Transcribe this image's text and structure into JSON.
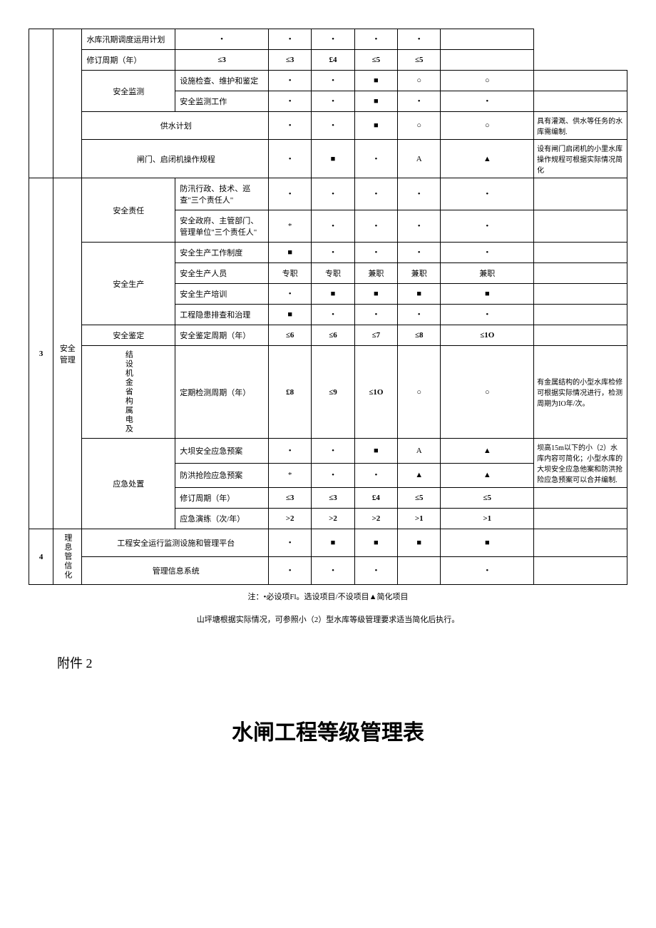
{
  "rows": [
    {
      "item": "水库汛期调度运用计划",
      "c": [
        "•",
        "•",
        "•",
        "•",
        "•"
      ],
      "note": ""
    },
    {
      "item": "修订周期（年）",
      "c": [
        "≤3",
        "≤3",
        "£4",
        "≤5",
        "≤5"
      ],
      "note": "",
      "bold": true
    },
    {
      "sub": "安全监测",
      "item": "设施检查、维护和鉴定",
      "c": [
        "•",
        "•",
        "■",
        "○",
        "○"
      ],
      "note": ""
    },
    {
      "item": "安全监测工作",
      "c": [
        "•",
        "•",
        "■",
        "•",
        "•"
      ],
      "note": ""
    },
    {
      "span": 2,
      "item": "供水计划",
      "c": [
        "•",
        "•",
        "■",
        "○",
        "○"
      ],
      "note": "具有灌溉、供水等任务的水库需编制."
    },
    {
      "span": 2,
      "item": "闸门、启闭机操作规程",
      "c": [
        "•",
        "■",
        "•",
        "A",
        "▲"
      ],
      "note": "设有闸门启闭机的小里水库操作规程可根据实际情况简化"
    },
    {
      "sub": "安全责任",
      "item": "防汛行政、技术、巡查\"三个责任人\"",
      "c": [
        "•",
        "•",
        "•",
        "•",
        "•"
      ],
      "note": ""
    },
    {
      "item": "安全政府、主管部门、管理单位\"三个责任人\"",
      "c": [
        "*",
        "•",
        "•",
        "•",
        "•"
      ],
      "note": ""
    },
    {
      "sub": "安全生产",
      "item": "安全生产工作制度",
      "c": [
        "■",
        "•",
        "•",
        "•",
        "•"
      ],
      "note": ""
    },
    {
      "item": "安全生产人员",
      "c": [
        "专职",
        "专职",
        "兼职",
        "兼职",
        "兼职"
      ],
      "note": ""
    },
    {
      "item": "安全生产培训",
      "c": [
        "•",
        "■",
        "■",
        "■",
        "■"
      ],
      "note": ""
    },
    {
      "item": "工程隐患排查和治理",
      "c": [
        "■",
        "•",
        "•",
        "•",
        "•"
      ],
      "note": ""
    },
    {
      "sub": "安全鉴定",
      "item": "安全鉴定周期（年）",
      "c": [
        "≤6",
        "≤6",
        "≤7",
        "≤8",
        "≤1O"
      ],
      "note": "",
      "bold": true
    },
    {
      "sub": "结设机金省构属电及",
      "vsub": true,
      "item": "定期检测周期（年）",
      "c": [
        "£8",
        "≤9",
        "≤1O",
        "○",
        "○"
      ],
      "note": "有金属结构的小型水库检修可根据实际情况进行，检测周期为IO年/次。",
      "bold": true
    },
    {
      "sub": "应急处置",
      "item": "大坝安全应急预案",
      "c": [
        "•",
        "•",
        "■",
        "A",
        "▲"
      ],
      "note": "坝高15m以下的小（2）水库内容可简化；小型水库的大坝安全应急他案和防洪抢险应急预案可以合并编制.",
      "notespan": 2
    },
    {
      "item": "防洪抢险应急预案",
      "c": [
        "*",
        "•",
        "•",
        "▲",
        "▲"
      ],
      "nonote": true
    },
    {
      "item": "修订周期（年）",
      "c": [
        "≤3",
        "≤3",
        "£4",
        "≤5",
        "≤5"
      ],
      "note": "",
      "bold": true
    },
    {
      "item": "应急演练（次/年）",
      "c": [
        ">2",
        ">2",
        ">2",
        ">1",
        ">1"
      ],
      "note": "",
      "bold": true
    },
    {
      "sub": "理息管信化",
      "vsub": true,
      "span": 2,
      "item": "工程安全运行监测设施和管理平台",
      "c": [
        "•",
        "■",
        "■",
        "■",
        "■"
      ],
      "note": ""
    },
    {
      "span": 2,
      "item": "管理信息系统",
      "c": [
        "•",
        "•",
        "•",
        "",
        "•"
      ],
      "note": ""
    }
  ],
  "section3": {
    "num": "3",
    "cat": "安全管理"
  },
  "section4": {
    "num": "4"
  },
  "footnote": "注：•必设项Fl。选设项目/不设项目▲简化项目",
  "subnote": "山坪塘根据实际情况，可参照小（2）型水库等级管理要求适当简化后执行。",
  "appendix": "附件 2",
  "title2": "水闸工程等级管理表"
}
